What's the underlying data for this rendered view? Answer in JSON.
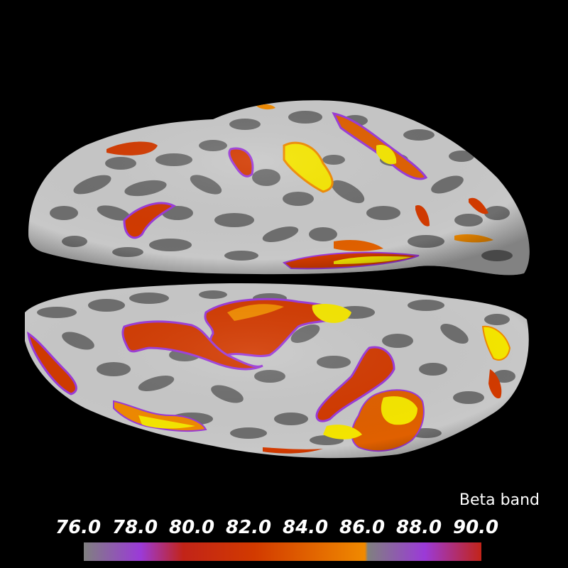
{
  "title": "Beta band",
  "colorbar": {
    "ticks": [
      "76.0",
      "78.0",
      "80.0",
      "82.0",
      "84.0",
      "86.0",
      "88.0",
      "90.0"
    ],
    "range": [
      76.0,
      90.0
    ],
    "stops": [
      {
        "value": 76.0,
        "color": "#808080"
      },
      {
        "value": 78.0,
        "color": "#9b3ad8"
      },
      {
        "value": 79.5,
        "color": "#c22418"
      },
      {
        "value": 82.0,
        "color": "#d23a00"
      },
      {
        "value": 85.9,
        "color": "#f08a00"
      },
      {
        "value": 86.0,
        "color": "#808080"
      },
      {
        "value": 88.0,
        "color": "#9b3ad8"
      },
      {
        "value": 90.0,
        "color": "#c22418"
      }
    ]
  },
  "colors": {
    "background": "#000000",
    "sulci": "#6e6e6e",
    "gyri": "#c8c8c8",
    "low": "#9b3ad8",
    "mid": "#d23a00",
    "high": "#f5e600"
  }
}
